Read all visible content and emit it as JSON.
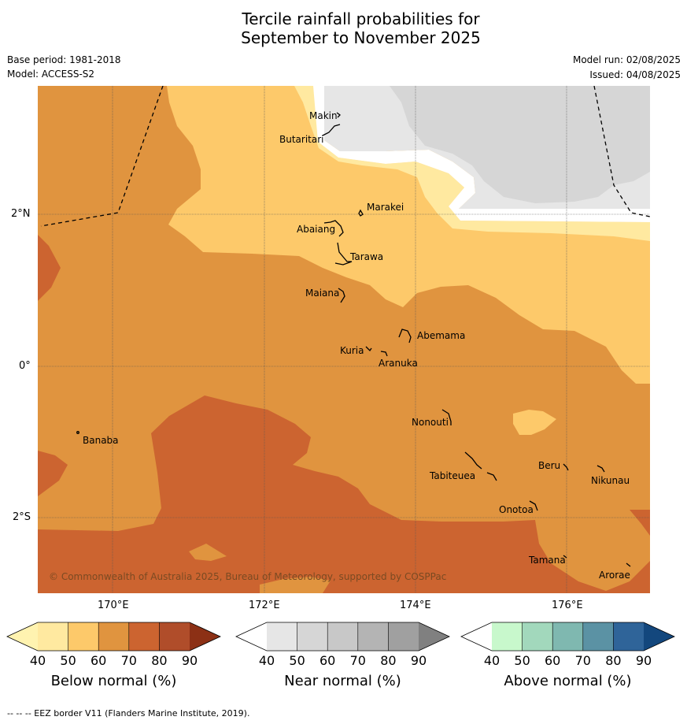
{
  "title_line1": "Tercile rainfall probabilities for",
  "title_line2": "September to November 2025",
  "base_period": "Base period: 1981-2018",
  "model": "Model: ACCESS-S2",
  "model_run": "Model run: 02/08/2025",
  "issued": "Issued: 04/08/2025",
  "copyright": "© Commonwealth of Australia 2025, Bureau of Meteorology, supported by COSPPac",
  "footnote": "--  --  -- EEZ border V11 (Flanders Marine Institute, 2019).",
  "axes": {
    "lon_labels": [
      "170°E",
      "172°E",
      "174°E",
      "176°E"
    ],
    "lat_labels": [
      "2°N",
      "0°",
      "2°S"
    ]
  },
  "places": [
    {
      "name": "Makin"
    },
    {
      "name": "Butaritari"
    },
    {
      "name": "Marakei"
    },
    {
      "name": "Abaiang"
    },
    {
      "name": "Tarawa"
    },
    {
      "name": "Maiana"
    },
    {
      "name": "Abemama"
    },
    {
      "name": "Kuria"
    },
    {
      "name": "Aranuka"
    },
    {
      "name": "Nonouti"
    },
    {
      "name": "Banaba"
    },
    {
      "name": "Beru"
    },
    {
      "name": "Tabiteuea"
    },
    {
      "name": "Nikunau"
    },
    {
      "name": "Onotoa"
    },
    {
      "name": "Tamana"
    },
    {
      "name": "Arorae"
    }
  ],
  "colorbars": [
    {
      "title": "Below normal (%)",
      "ticks": [
        "40",
        "50",
        "60",
        "70",
        "80",
        "90"
      ],
      "colors": [
        "#fff3b0",
        "#ffe9a0",
        "#fdc96a",
        "#e0943f",
        "#cc6430",
        "#b04d2a",
        "#8c3015"
      ]
    },
    {
      "title": "Near normal (%)",
      "ticks": [
        "40",
        "50",
        "60",
        "70",
        "80",
        "90"
      ],
      "colors": [
        "#ffffff",
        "#e6e6e6",
        "#d6d6d6",
        "#c8c8c8",
        "#b4b4b4",
        "#a0a0a0",
        "#808080"
      ]
    },
    {
      "title": "Above normal (%)",
      "ticks": [
        "40",
        "50",
        "60",
        "70",
        "80",
        "90"
      ],
      "colors": [
        "#ffffff",
        "#c8f8cc",
        "#a2d8bc",
        "#7fb8b0",
        "#5b92a4",
        "#2f6499",
        "#13477d"
      ]
    }
  ]
}
